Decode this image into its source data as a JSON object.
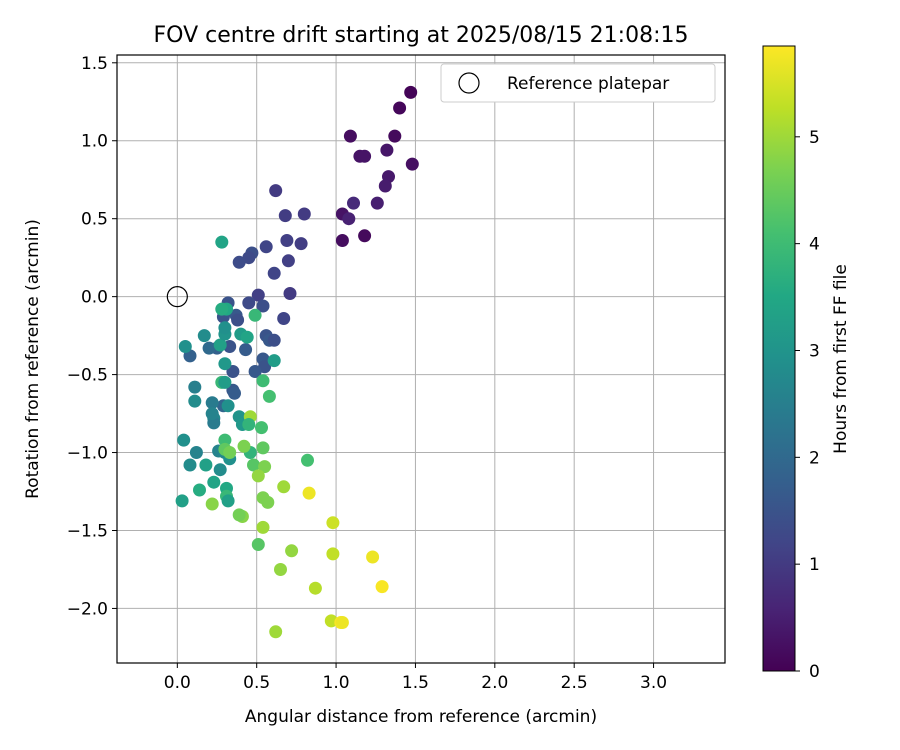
{
  "chart_data": {
    "type": "scatter",
    "title": "FOV centre drift starting at 2025/08/15 21:08:15",
    "xlabel": "Angular distance from reference (arcmin)",
    "ylabel": "Rotation from reference (arcmin)",
    "xlim": [
      -0.38,
      3.45
    ],
    "ylim": [
      -2.35,
      1.55
    ],
    "xticks": [
      0.0,
      0.5,
      1.0,
      1.5,
      2.0,
      2.5,
      3.0
    ],
    "xtick_labels": [
      "0.0",
      "0.5",
      "1.0",
      "1.5",
      "2.0",
      "2.5",
      "3.0"
    ],
    "yticks": [
      -2.0,
      -1.5,
      -1.0,
      -0.5,
      0.0,
      0.5,
      1.0,
      1.5
    ],
    "ytick_labels": [
      "−2.0",
      "−1.5",
      "−1.0",
      "−0.5",
      "0.0",
      "0.5",
      "1.0",
      "1.5"
    ],
    "grid": true,
    "legend": {
      "placement": "top-right",
      "entries": [
        "Reference platepar"
      ]
    },
    "reference_point": {
      "x": 0.0,
      "y": 0.0
    },
    "colorbar": {
      "label": "Hours from first FF file",
      "range": [
        0,
        5.85
      ],
      "ticks": [
        0,
        1,
        2,
        3,
        4,
        5
      ],
      "tick_labels": [
        "0",
        "1",
        "2",
        "3",
        "4",
        "5"
      ],
      "colormap": "viridis"
    },
    "series": [
      {
        "points": [
          [
            1.47,
            1.31,
            0.05
          ],
          [
            1.4,
            1.21,
            0.1
          ],
          [
            1.37,
            1.03,
            0.15
          ],
          [
            1.09,
            1.03,
            0.2
          ],
          [
            1.48,
            0.85,
            0.25
          ],
          [
            1.15,
            0.9,
            0.3
          ],
          [
            1.18,
            0.9,
            0.32
          ],
          [
            1.32,
            0.94,
            0.35
          ],
          [
            1.33,
            0.77,
            0.4
          ],
          [
            1.31,
            0.71,
            0.45
          ],
          [
            1.26,
            0.6,
            0.5
          ],
          [
            1.04,
            0.53,
            0.3
          ],
          [
            1.08,
            0.5,
            0.55
          ],
          [
            1.18,
            0.39,
            0.15
          ],
          [
            1.04,
            0.36,
            0.2
          ],
          [
            1.11,
            0.6,
            0.7
          ],
          [
            0.62,
            0.68,
            1.0
          ],
          [
            0.68,
            0.52,
            1.05
          ],
          [
            0.8,
            0.53,
            1.0
          ],
          [
            0.69,
            0.36,
            1.1
          ],
          [
            0.78,
            0.34,
            1.05
          ],
          [
            0.56,
            0.32,
            1.2
          ],
          [
            0.47,
            0.28,
            1.4
          ],
          [
            0.45,
            0.25,
            1.3
          ],
          [
            0.39,
            0.22,
            1.35
          ],
          [
            0.7,
            0.23,
            1.1
          ],
          [
            0.61,
            0.15,
            1.2
          ],
          [
            0.71,
            0.02,
            1.0
          ],
          [
            0.51,
            0.01,
            1.1
          ],
          [
            0.45,
            -0.04,
            1.3
          ],
          [
            0.54,
            -0.06,
            1.4
          ],
          [
            0.32,
            -0.04,
            1.5
          ],
          [
            0.3,
            -0.1,
            1.6
          ],
          [
            0.37,
            -0.12,
            1.6
          ],
          [
            0.29,
            -0.13,
            1.5
          ],
          [
            0.38,
            -0.15,
            1.4
          ],
          [
            0.67,
            -0.14,
            1.2
          ],
          [
            0.56,
            -0.25,
            1.5
          ],
          [
            0.58,
            -0.28,
            1.6
          ],
          [
            0.61,
            -0.28,
            1.4
          ],
          [
            0.25,
            -0.33,
            1.8
          ],
          [
            0.2,
            -0.33,
            2.0
          ],
          [
            0.33,
            -0.32,
            1.5
          ],
          [
            0.43,
            -0.34,
            1.7
          ],
          [
            0.54,
            -0.4,
            1.6
          ],
          [
            0.55,
            -0.45,
            1.5
          ],
          [
            0.49,
            -0.48,
            1.6
          ],
          [
            0.35,
            -0.48,
            1.5
          ],
          [
            0.08,
            -0.38,
            1.8
          ],
          [
            0.35,
            -0.6,
            1.6
          ],
          [
            0.36,
            -0.62,
            1.7
          ],
          [
            0.29,
            -0.7,
            1.9
          ],
          [
            0.05,
            -0.32,
            2.9
          ],
          [
            0.17,
            -0.25,
            2.8
          ],
          [
            0.27,
            -0.31,
            3.3
          ],
          [
            0.31,
            -0.08,
            3.5
          ],
          [
            0.28,
            -0.08,
            3.6
          ],
          [
            0.3,
            -0.24,
            3.0
          ],
          [
            0.3,
            -0.2,
            2.9
          ],
          [
            0.4,
            -0.24,
            3.2
          ],
          [
            0.44,
            -0.26,
            3.4
          ],
          [
            0.3,
            -0.43,
            3.1
          ],
          [
            0.28,
            -0.55,
            3.9
          ],
          [
            0.3,
            -0.55,
            3.2
          ],
          [
            0.32,
            -0.7,
            2.9
          ],
          [
            0.39,
            -0.77,
            3.0
          ],
          [
            0.41,
            -0.82,
            3.1
          ],
          [
            0.22,
            -0.68,
            2.4
          ],
          [
            0.11,
            -0.58,
            2.5
          ],
          [
            0.11,
            -0.67,
            2.8
          ],
          [
            0.23,
            -0.78,
            2.7
          ],
          [
            0.23,
            -0.81,
            2.4
          ],
          [
            0.22,
            -0.75,
            2.6
          ],
          [
            0.04,
            -0.92,
            2.9
          ],
          [
            0.12,
            -1.0,
            2.6
          ],
          [
            0.26,
            -0.99,
            2.6
          ],
          [
            0.3,
            -1.0,
            2.7
          ],
          [
            0.08,
            -1.08,
            2.8
          ],
          [
            0.18,
            -1.08,
            3.3
          ],
          [
            0.27,
            -1.11,
            2.8
          ],
          [
            0.33,
            -1.04,
            2.9
          ],
          [
            0.3,
            -0.92,
            4.0
          ],
          [
            0.3,
            -0.98,
            4.4
          ],
          [
            0.33,
            -1.0,
            4.6
          ],
          [
            0.46,
            -1.0,
            3.8
          ],
          [
            0.46,
            -0.77,
            5.0
          ],
          [
            0.53,
            -0.84,
            4.1
          ],
          [
            0.45,
            -0.82,
            3.8
          ],
          [
            0.42,
            -0.96,
            4.7
          ],
          [
            0.54,
            -0.97,
            4.4
          ],
          [
            0.48,
            -1.08,
            4.3
          ],
          [
            0.55,
            -1.09,
            4.7
          ],
          [
            0.51,
            -1.15,
            4.9
          ],
          [
            0.58,
            -0.64,
            4.1
          ],
          [
            0.54,
            -0.54,
            4.0
          ],
          [
            0.49,
            -0.12,
            3.9
          ],
          [
            0.61,
            -0.41,
            3.2
          ],
          [
            0.28,
            0.35,
            3.4
          ],
          [
            0.14,
            -1.24,
            3.6
          ],
          [
            0.23,
            -1.19,
            3.4
          ],
          [
            0.31,
            -1.23,
            3.5
          ],
          [
            0.31,
            -1.28,
            3.9
          ],
          [
            0.32,
            -1.31,
            3.3
          ],
          [
            0.03,
            -1.31,
            3.3
          ],
          [
            0.22,
            -1.33,
            4.8
          ],
          [
            0.41,
            -1.41,
            4.8
          ],
          [
            0.39,
            -1.4,
            4.6
          ],
          [
            0.54,
            -1.29,
            4.7
          ],
          [
            0.57,
            -1.32,
            4.7
          ],
          [
            0.54,
            -1.48,
            5.0
          ],
          [
            0.51,
            -1.59,
            4.3
          ],
          [
            0.67,
            -1.22,
            5.0
          ],
          [
            0.72,
            -1.63,
            4.9
          ],
          [
            0.65,
            -1.75,
            4.9
          ],
          [
            0.62,
            -2.15,
            5.0
          ],
          [
            0.87,
            -1.87,
            5.2
          ],
          [
            0.97,
            -2.08,
            5.3
          ],
          [
            0.82,
            -1.05,
            4.1
          ],
          [
            0.83,
            -1.26,
            5.7
          ],
          [
            0.98,
            -1.45,
            5.4
          ],
          [
            0.98,
            -1.65,
            5.3
          ],
          [
            1.03,
            -2.09,
            5.8
          ],
          [
            1.04,
            -2.09,
            5.7
          ],
          [
            1.23,
            -1.67,
            5.7
          ],
          [
            1.29,
            -1.86,
            5.8
          ]
        ]
      }
    ]
  }
}
